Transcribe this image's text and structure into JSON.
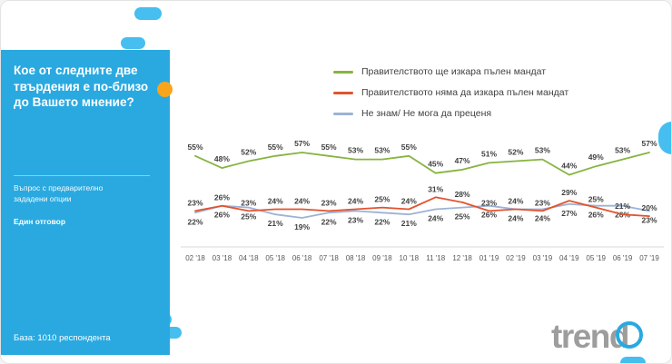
{
  "sidebar": {
    "question": "Кое от следните две твърдения е по-близо до Вашето мнение?",
    "note": "Въпрос с предварително зададени опции",
    "answer_type": "Един отговор",
    "base": "База: 1010 респондента"
  },
  "legend": [
    {
      "label": "Правителството ще изкара пълен мандат",
      "color": "#86B440"
    },
    {
      "label": "Правителството няма да изкара пълен мандат",
      "color": "#E2532F"
    },
    {
      "label": "Не знам/ Не мога да преценя",
      "color": "#9CB3D6"
    }
  ],
  "chart_data": {
    "type": "line",
    "title": "",
    "unit": "%",
    "grid": false,
    "legend_position": "top-right",
    "ylim": [
      15,
      60
    ],
    "categories": [
      "02 '18",
      "03 '18",
      "04 '18",
      "05 '18",
      "06 '18",
      "07 '18",
      "08 '18",
      "09 '18",
      "10 '18",
      "11 '18",
      "12 '18",
      "01 '19",
      "02 '19",
      "03 '19",
      "04 '19",
      "05 '19",
      "06 '19",
      "07 '19"
    ],
    "series": [
      {
        "name": "Правителството ще изкара пълен мандат",
        "color": "#86B440",
        "values": [
          55,
          48,
          52,
          55,
          57,
          55,
          53,
          53,
          55,
          45,
          47,
          51,
          52,
          53,
          44,
          49,
          53,
          57
        ]
      },
      {
        "name": "Правителството няма да изкара пълен мандат",
        "color": "#E2532F",
        "values": [
          23,
          26,
          23,
          24,
          24,
          23,
          24,
          25,
          24,
          31,
          28,
          23,
          24,
          23,
          29,
          25,
          21,
          20
        ]
      },
      {
        "name": "Не знам/ Не мога да преценя",
        "color": "#9CB3D6",
        "values": [
          22,
          26,
          25,
          21,
          19,
          22,
          23,
          22,
          21,
          24,
          25,
          26,
          24,
          24,
          27,
          26,
          26,
          23
        ]
      }
    ]
  },
  "logo": {
    "text": "trend"
  },
  "colors": {
    "sidebar": "#29A9E0",
    "deco": "#46BEEF",
    "accent_orange": "#F9A51B",
    "label_text": "#3f3f3f",
    "axis_line": "#d9d9d9"
  }
}
